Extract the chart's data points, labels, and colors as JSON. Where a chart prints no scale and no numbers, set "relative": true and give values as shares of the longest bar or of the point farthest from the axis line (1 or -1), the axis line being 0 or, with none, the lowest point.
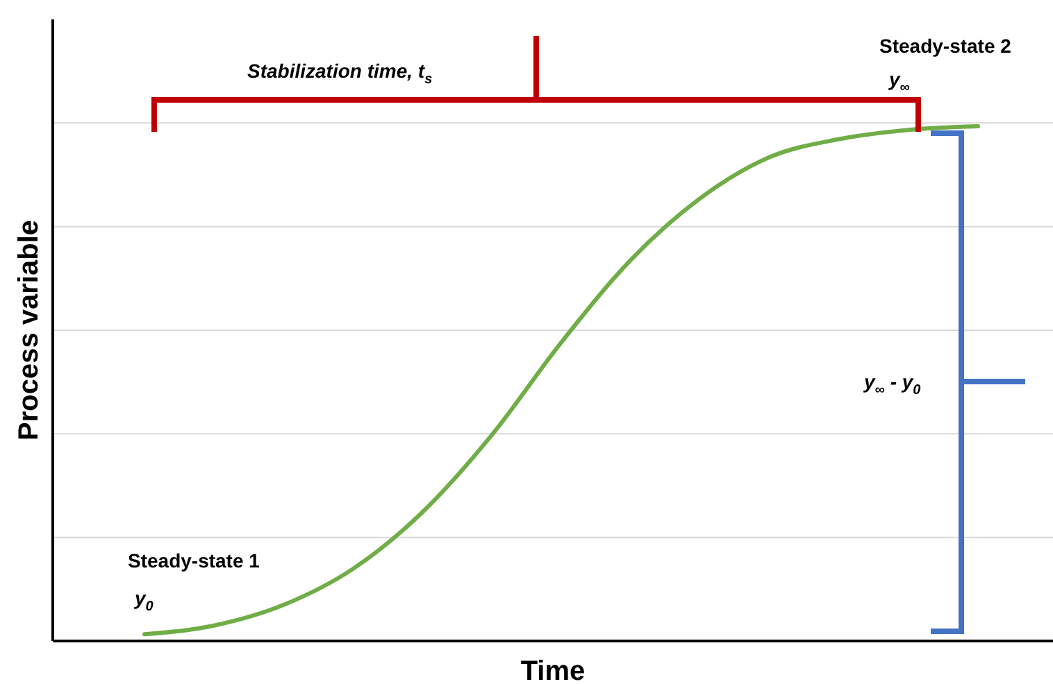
{
  "chart_data": {
    "type": "line",
    "relative": true,
    "xlabel": "Time",
    "ylabel": "Process variable",
    "grid": "y",
    "categories": [
      null,
      null,
      null,
      null,
      null,
      null,
      null,
      null,
      null,
      null,
      null,
      null,
      null
    ],
    "series": [
      {
        "color": "#70ad47",
        "values": [
          0.013,
          0.03,
          0.07,
          0.14,
          0.25,
          0.4,
          0.58,
          0.74,
          0.86,
          0.94,
          0.975,
          0.993,
          1
        ]
      }
    ],
    "annotations": [
      "Stabilization time, t$_{s}$",
      "Steady-state 2",
      "y$_{∞}$",
      "Steady-state 1",
      "y$_{0}$",
      "y$_{∞}$ - y$_{0}$"
    ]
  }
}
